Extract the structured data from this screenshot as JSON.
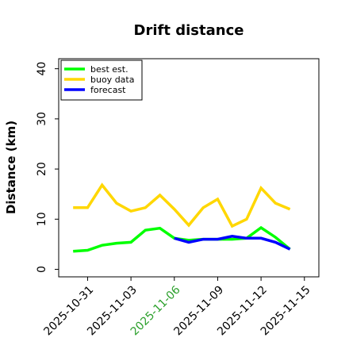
{
  "chart_data": {
    "type": "line",
    "title": "Drift distance",
    "xlabel": "",
    "ylabel": "Distance (km)",
    "x": [
      "2025-10-30",
      "2025-10-31",
      "2025-11-01",
      "2025-11-02",
      "2025-11-03",
      "2025-11-04",
      "2025-11-05",
      "2025-11-06",
      "2025-11-07",
      "2025-11-08",
      "2025-11-09",
      "2025-11-10",
      "2025-11-11",
      "2025-11-12",
      "2025-11-13",
      "2025-11-14"
    ],
    "xticks": [
      "2025-10-31",
      "2025-11-03",
      "2025-11-06",
      "2025-11-09",
      "2025-11-12",
      "2025-11-15"
    ],
    "highlighted_xtick": "2025-11-06",
    "highlight_color": "#2ca02c",
    "xlim": [
      "2025-10-29",
      "2025-11-16"
    ],
    "ylim": [
      -1.5,
      42
    ],
    "yticks": [
      0,
      10,
      20,
      30,
      40
    ],
    "grid": false,
    "legend_position": "top-left",
    "series": [
      {
        "name": "best est.",
        "color": "#00ff00",
        "x": [
          "2025-10-30",
          "2025-10-31",
          "2025-11-01",
          "2025-11-02",
          "2025-11-03",
          "2025-11-04",
          "2025-11-05",
          "2025-11-06",
          "2025-11-07",
          "2025-11-08",
          "2025-11-09",
          "2025-11-10",
          "2025-11-11",
          "2025-11-12",
          "2025-11-13",
          "2025-11-14"
        ],
        "values": [
          3.6,
          3.8,
          4.8,
          5.2,
          5.4,
          7.8,
          8.2,
          6.2,
          5.8,
          6.0,
          6.0,
          6.0,
          6.2,
          8.3,
          6.4,
          4.0
        ]
      },
      {
        "name": "buoy data",
        "color": "#ffd700",
        "x": [
          "2025-10-30",
          "2025-10-31",
          "2025-11-01",
          "2025-11-02",
          "2025-11-03",
          "2025-11-04",
          "2025-11-05",
          "2025-11-06",
          "2025-11-07",
          "2025-11-08",
          "2025-11-09",
          "2025-11-10",
          "2025-11-11",
          "2025-11-12",
          "2025-11-13",
          "2025-11-14"
        ],
        "values": [
          12.3,
          12.3,
          16.8,
          13.2,
          11.6,
          12.3,
          14.8,
          12.0,
          8.8,
          12.3,
          14.0,
          8.6,
          10.0,
          16.2,
          13.2,
          12.0
        ]
      },
      {
        "name": "forecast",
        "color": "#0000ff",
        "x": [
          "2025-11-06",
          "2025-11-07",
          "2025-11-08",
          "2025-11-09",
          "2025-11-10",
          "2025-11-11",
          "2025-11-12",
          "2025-11-13",
          "2025-11-14"
        ],
        "values": [
          6.2,
          5.4,
          6.0,
          6.0,
          6.6,
          6.2,
          6.2,
          5.4,
          4.0
        ]
      }
    ]
  }
}
